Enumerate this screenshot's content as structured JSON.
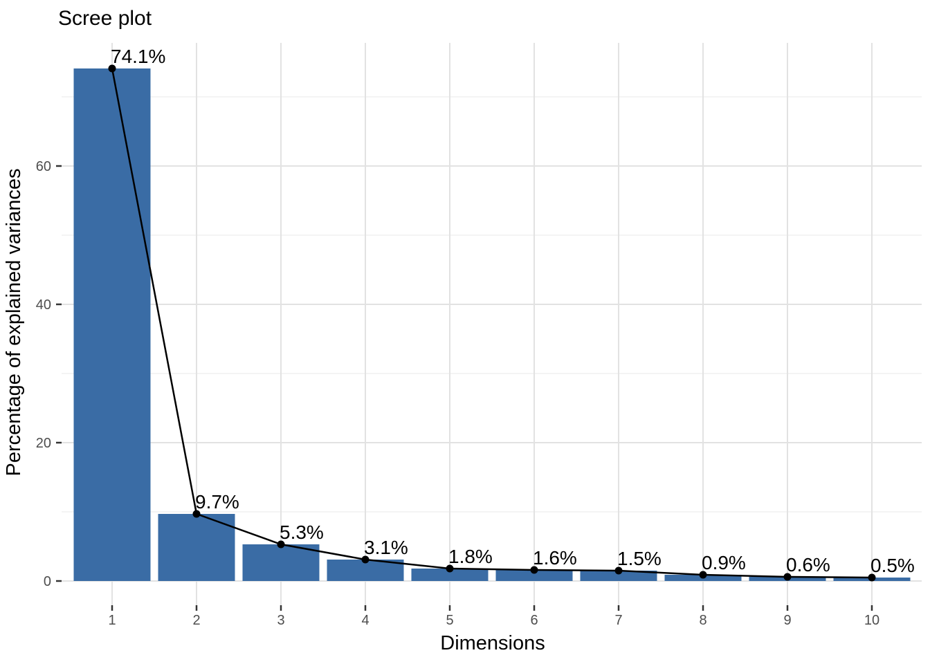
{
  "chart_data": {
    "type": "bar",
    "overlay": "line-with-points",
    "title": "Scree plot",
    "xlabel": "Dimensions",
    "ylabel": "Percentage of explained variances",
    "categories": [
      "1",
      "2",
      "3",
      "4",
      "5",
      "6",
      "7",
      "8",
      "9",
      "10"
    ],
    "values": [
      74.1,
      9.7,
      5.3,
      3.1,
      1.8,
      1.6,
      1.5,
      0.9,
      0.6,
      0.5
    ],
    "point_labels": [
      "74.1%",
      "9.7%",
      "5.3%",
      "3.1%",
      "1.8%",
      "1.6%",
      "1.5%",
      "0.9%",
      "0.6%",
      "0.5%"
    ],
    "ylim": [
      0,
      77.8
    ],
    "yticks": [
      0,
      20,
      40,
      60
    ],
    "yticks_minor": [
      10,
      30,
      50,
      70
    ],
    "grid": "on",
    "legend": "none",
    "colors": {
      "bar_fill": "#3A6CA5",
      "line": "#000000",
      "point": "#000000",
      "grid_major": "#E2E2E2",
      "grid_minor": "#F0F0F0",
      "tick_mark": "#333333",
      "tick_label": "#4D4D4D",
      "text": "#000000",
      "background": "#FFFFFF"
    }
  }
}
